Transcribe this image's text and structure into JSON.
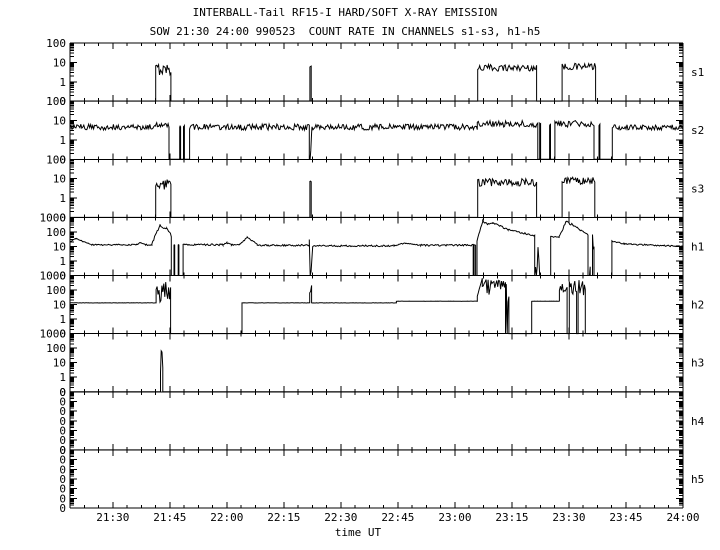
{
  "title": "INTERBALL-Tail RF15-I HARD/SOFT X-RAY EMISSION",
  "subtitle": "SOW 21:30 24:00 990523  COUNT RATE IN CHANNELS s1-s3, h1-h5",
  "colors": {
    "foreground": "#000000",
    "background": "#ffffff"
  },
  "x_axis": {
    "label": "time UT",
    "tick_labels": [
      "21:30",
      "21:45",
      "22:00",
      "22:15",
      "22:30",
      "22:45",
      "23:00",
      "23:15",
      "23:30",
      "23:45",
      "24:00"
    ],
    "tick_minutes": [
      30,
      45,
      60,
      75,
      90,
      105,
      120,
      135,
      150,
      165,
      180
    ],
    "minor_step_minutes": 3.75,
    "start_minute": 18.75,
    "end_minute": 180
  },
  "chart_data": {
    "type": "line",
    "title": "INTERBALL-Tail RF15-I HARD/SOFT X-RAY EMISSION",
    "x_unit": "minutes after 21:00 UT",
    "ylabel_note": "count rate, log scale per panel; bottom tick labeled 0",
    "grid": false,
    "legend": "channel names on right edge: s1 s2 s3 h1 h2 h3 h4 h5",
    "panels": [
      {
        "name": "s1",
        "vtop": 100,
        "ylabels": [
          "100",
          "10",
          "1",
          "0"
        ],
        "segments": [
          [
            "zero",
            18.75,
            41.3
          ],
          [
            "noise",
            41.3,
            45.3,
            2.2,
            9
          ],
          [
            "zero",
            45.3,
            81.85
          ],
          [
            "flat",
            81.85,
            82.2,
            6,
            0.1
          ],
          [
            "zero",
            82.2,
            126.0
          ],
          [
            "noise",
            126.0,
            141.5,
            3.5,
            8
          ],
          [
            "zero",
            141.5,
            148.2
          ],
          [
            "noise",
            148.2,
            157.0,
            4,
            9
          ],
          [
            "zero",
            157.0,
            180
          ]
        ]
      },
      {
        "name": "s2",
        "vtop": 100,
        "ylabels": [
          "100",
          "10",
          "1",
          "0"
        ],
        "segments": [
          [
            "noise",
            18.75,
            41.3,
            3.2,
            6.5
          ],
          [
            "noise",
            41.3,
            44.8,
            4.5,
            11
          ],
          [
            "zero",
            44.8,
            47.6
          ],
          [
            "flat",
            47.6,
            47.85,
            5,
            0.1
          ],
          [
            "zero",
            47.85,
            48.6
          ],
          [
            "flat",
            48.6,
            48.85,
            5,
            0.1
          ],
          [
            "zero",
            48.85,
            50.2
          ],
          [
            "noise",
            50.2,
            81.7,
            3.2,
            6.5
          ],
          [
            "noise",
            81.7,
            82.3,
            0.01,
            7
          ],
          [
            "noise",
            82.4,
            125.9,
            3.2,
            6.5
          ],
          [
            "noise",
            125.9,
            141.8,
            4.5,
            10
          ],
          [
            "zero",
            141.8,
            142.3
          ],
          [
            "flat",
            142.3,
            142.55,
            7,
            0.1
          ],
          [
            "zero",
            142.55,
            144.9
          ],
          [
            "flat",
            144.9,
            145.15,
            6,
            0.1
          ],
          [
            "zero",
            145.15,
            146.3
          ],
          [
            "noise",
            146.3,
            156.6,
            4.5,
            10
          ],
          [
            "zero",
            156.6,
            157.9
          ],
          [
            "flat",
            157.9,
            158.15,
            6,
            0.1
          ],
          [
            "zero",
            158.15,
            161.4
          ],
          [
            "noise",
            161.4,
            180,
            3.2,
            6
          ]
        ]
      },
      {
        "name": "s3",
        "vtop": 100,
        "ylabels": [
          "100",
          "10",
          "1",
          "0"
        ],
        "segments": [
          [
            "zero",
            18.75,
            41.3
          ],
          [
            "noise",
            41.3,
            45.3,
            2.2,
            9
          ],
          [
            "zero",
            45.3,
            81.85
          ],
          [
            "flat",
            81.85,
            82.2,
            7,
            0.1
          ],
          [
            "zero",
            82.2,
            126.0
          ],
          [
            "noise",
            126.0,
            141.5,
            4,
            10
          ],
          [
            "zero",
            141.5,
            148.2
          ],
          [
            "noise",
            148.2,
            156.8,
            5,
            12
          ],
          [
            "zero",
            156.8,
            180
          ]
        ]
      },
      {
        "name": "h1",
        "vtop": 1000,
        "ylabels": [
          "1000",
          "100",
          "10",
          "1",
          "0"
        ],
        "segments": [
          [
            "ramp",
            18.75,
            20.3,
            20,
            34,
            0.08
          ],
          [
            "ramp",
            20.3,
            24.5,
            34,
            13,
            0.08
          ],
          [
            "flat",
            24.5,
            36.3,
            13,
            0.1
          ],
          [
            "ramp",
            36.3,
            37.3,
            13,
            19,
            0.06
          ],
          [
            "ramp",
            37.3,
            38.6,
            19,
            13,
            0.06
          ],
          [
            "flat",
            38.6,
            40.3,
            13,
            0.1
          ],
          [
            "ramp",
            40.3,
            42.4,
            16,
            290,
            0.15
          ],
          [
            "ramp",
            42.4,
            44.2,
            290,
            170,
            0.2
          ],
          [
            "ramp",
            44.2,
            45.4,
            170,
            55,
            0.15
          ],
          [
            "zero",
            45.4,
            46.1
          ],
          [
            "flat",
            46.1,
            46.3,
            13,
            0.05
          ],
          [
            "zero",
            46.3,
            47.2
          ],
          [
            "flat",
            47.2,
            47.4,
            13,
            0.05
          ],
          [
            "zero",
            47.4,
            48.5
          ],
          [
            "flat",
            48.5,
            59.0,
            13,
            0.12
          ],
          [
            "ramp",
            59.0,
            60.0,
            13,
            18,
            0.08
          ],
          [
            "ramp",
            60.0,
            61.2,
            18,
            13,
            0.08
          ],
          [
            "flat",
            61.2,
            63.4,
            13,
            0.1
          ],
          [
            "ramp",
            63.4,
            65.4,
            14,
            45,
            0.12
          ],
          [
            "ramp",
            65.4,
            68.0,
            45,
            13,
            0.1
          ],
          [
            "flat",
            68.0,
            81.7,
            12,
            0.12
          ],
          [
            "noise",
            81.7,
            82.4,
            0.01,
            300
          ],
          [
            "flat",
            82.6,
            104.0,
            11,
            0.12
          ],
          [
            "ramp",
            104.0,
            107.0,
            11,
            17,
            0.08
          ],
          [
            "ramp",
            107.0,
            111.0,
            17,
            12,
            0.08
          ],
          [
            "flat",
            111.0,
            124.8,
            12,
            0.12
          ],
          [
            "zero",
            124.8,
            125.05
          ],
          [
            "flat",
            125.05,
            125.45,
            12,
            0.08
          ],
          [
            "zero",
            125.45,
            125.8
          ],
          [
            "ramp",
            125.8,
            127.3,
            25,
            560,
            0.12
          ],
          [
            "ramp",
            127.3,
            128.6,
            560,
            330,
            0.1
          ],
          [
            "ramp",
            128.6,
            130.0,
            330,
            420,
            0.1
          ],
          [
            "ramp",
            130.0,
            134.0,
            420,
            140,
            0.12
          ],
          [
            "ramp",
            134.0,
            141.0,
            140,
            55,
            0.12
          ],
          [
            "noise",
            141.0,
            142.3,
            0.01,
            60
          ],
          [
            "zero",
            142.3,
            145.2
          ],
          [
            "flat",
            145.2,
            147.4,
            45,
            0.08
          ],
          [
            "ramp",
            147.4,
            149.2,
            45,
            520,
            0.18
          ],
          [
            "ramp",
            149.2,
            151.0,
            520,
            330,
            0.2
          ],
          [
            "ramp",
            151.0,
            153.2,
            330,
            120,
            0.15
          ],
          [
            "ramp",
            153.2,
            155.0,
            120,
            65,
            0.12
          ],
          [
            "noise",
            155.0,
            155.6,
            0.01,
            80
          ],
          [
            "zero",
            155.6,
            156.2
          ],
          [
            "noise",
            156.2,
            156.6,
            0.01,
            80
          ],
          [
            "zero",
            156.6,
            161.3
          ],
          [
            "ramp",
            161.3,
            164.5,
            24,
            15,
            0.1
          ],
          [
            "ramp",
            164.5,
            180,
            15,
            10,
            0.1
          ]
        ]
      },
      {
        "name": "h2",
        "vtop": 1000,
        "ylabels": [
          "1000",
          "100",
          "10",
          "1",
          "0"
        ],
        "segments": [
          [
            "flat",
            18.75,
            41.4,
            13,
            0.02
          ],
          [
            "noise",
            41.4,
            45.2,
            12,
            400
          ],
          [
            "zero",
            45.2,
            64.0
          ],
          [
            "flat",
            64.0,
            81.8,
            13,
            0.02
          ],
          [
            "noise",
            81.8,
            82.3,
            13,
            250
          ],
          [
            "flat",
            82.3,
            104.6,
            13,
            0.02
          ],
          [
            "flat",
            104.6,
            125.9,
            17,
            0.02
          ],
          [
            "ramp",
            125.9,
            127.2,
            35,
            700,
            0.1
          ],
          [
            "noise",
            127.2,
            133.3,
            40,
            600
          ],
          [
            "noise",
            133.3,
            134.2,
            0.01,
            300
          ],
          [
            "zero",
            134.2,
            140.2
          ],
          [
            "flat",
            140.2,
            147.5,
            17,
            0.02
          ],
          [
            "noise",
            147.5,
            149.5,
            70,
            550
          ],
          [
            "zero",
            149.5,
            150.1
          ],
          [
            "noise",
            150.1,
            152.0,
            50,
            550
          ],
          [
            "zero",
            152.0,
            152.4
          ],
          [
            "noise",
            152.4,
            154.3,
            40,
            500
          ],
          [
            "zero",
            154.3,
            180
          ]
        ]
      },
      {
        "name": "h3",
        "vtop": 1000,
        "ylabels": [
          "1000",
          "100",
          "10",
          "1",
          "0"
        ],
        "segments": [
          [
            "zero",
            18.75,
            42.55
          ],
          [
            "noise",
            42.55,
            43.15,
            0.5,
            270
          ],
          [
            "zero",
            43.15,
            180
          ]
        ]
      },
      {
        "name": "h4",
        "vtop": null,
        "ylabels": [
          "0",
          "0",
          "0",
          "0",
          "0",
          "0",
          "0"
        ],
        "segments": [
          [
            "zero",
            18.75,
            180
          ]
        ]
      },
      {
        "name": "h5",
        "vtop": null,
        "ylabels": [
          "0",
          "0",
          "0",
          "0",
          "0",
          "0",
          "0"
        ],
        "segments": [
          [
            "zero",
            18.75,
            180
          ]
        ]
      }
    ]
  }
}
